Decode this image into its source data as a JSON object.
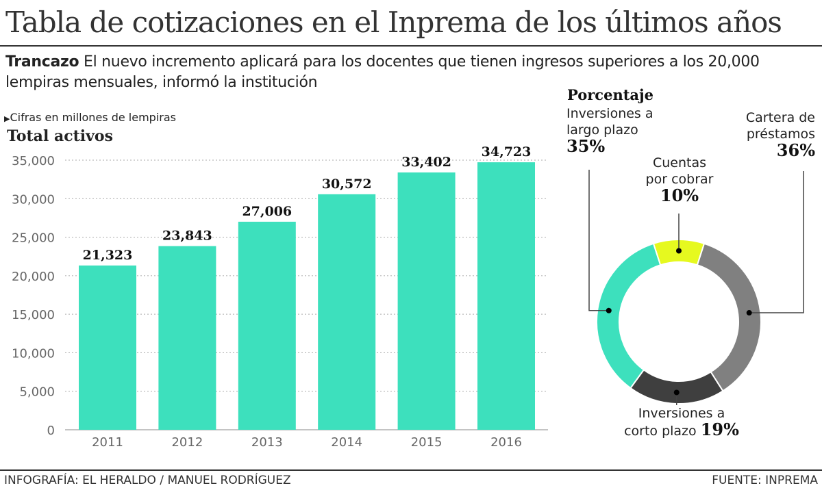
{
  "title": "Tabla de cotizaciones en el Inprema de los últimos años",
  "subtitle": {
    "lead": "Trancazo",
    "text": " El nuevo incremento aplicará para los docentes que tienen ingresos superiores a los 20,000 lempiras mensuales, informó la institución"
  },
  "note": "Cifras en millones de lempiras",
  "footer": {
    "credit": "INFOGRAFÍA: EL HERALDO / MANUEL RODRÍGUEZ",
    "source": "FUENTE: INPREMA"
  },
  "chart_data": [
    {
      "type": "bar",
      "title": "Total activos",
      "categories": [
        "2011",
        "2012",
        "2013",
        "2014",
        "2015",
        "2016"
      ],
      "values": [
        21323,
        23843,
        27006,
        30572,
        33402,
        34723
      ],
      "value_labels": [
        "21,323",
        "23,843",
        "27,006",
        "30,572",
        "33,402",
        "34,723"
      ],
      "ylim": [
        0,
        35000
      ],
      "yticks": [
        0,
        5000,
        10000,
        15000,
        20000,
        25000,
        30000,
        35000
      ],
      "ytick_labels": [
        "0",
        "5,000",
        "10,000",
        "15,000",
        "20,000",
        "25,000",
        "30,000",
        "35,000"
      ],
      "grid": true,
      "color": "#3de0bd"
    },
    {
      "type": "pie",
      "title": "Porcentaje",
      "donut": true,
      "slices": [
        {
          "label_lines": [
            "Cuentas",
            "por cobrar"
          ],
          "value": 10,
          "pct": "10%",
          "color": "#e6f91f"
        },
        {
          "label_lines": [
            "Cartera de",
            "préstamos"
          ],
          "value": 36,
          "pct": "36%",
          "color": "#808080"
        },
        {
          "label_lines": [
            "Inversiones a",
            "corto plazo"
          ],
          "value": 19,
          "pct": "19%",
          "color": "#3f3f3f"
        },
        {
          "label_lines": [
            "Inversiones a",
            "largo plazo"
          ],
          "value": 35,
          "pct": "35%",
          "color": "#3de0bd"
        }
      ]
    }
  ]
}
